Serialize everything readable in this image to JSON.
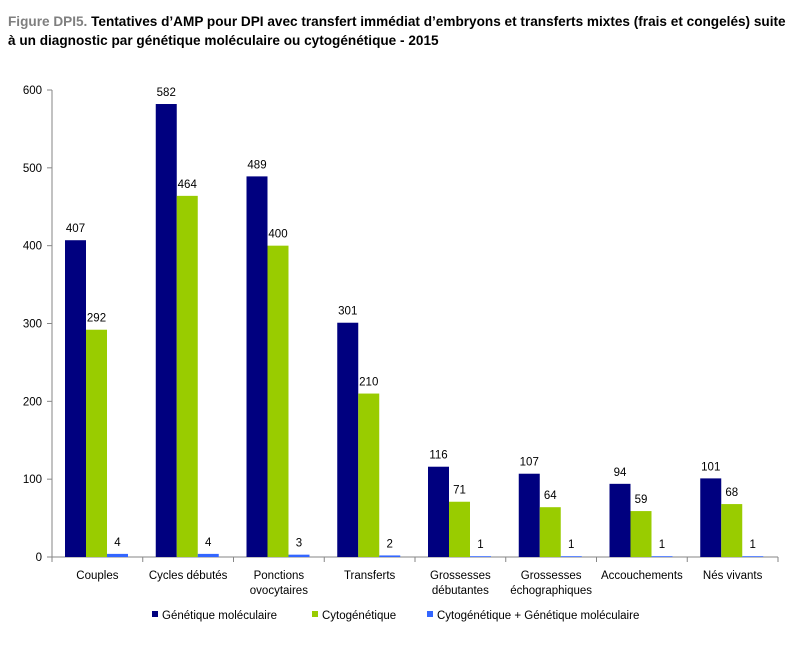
{
  "title": {
    "prefix": "Figure DPI5.",
    "text": "Tentatives d’AMP pour DPI avec transfert immédiat d’embryons et transferts mixtes (frais et congelés) suite à un diagnostic par génétique moléculaire ou cytogénétique - 2015"
  },
  "chart_data": {
    "type": "bar",
    "categories": [
      [
        "Couples"
      ],
      [
        "Cycles débutés"
      ],
      [
        "Ponctions",
        "ovocytaires"
      ],
      [
        "Transferts"
      ],
      [
        "Grossesses",
        "débutantes"
      ],
      [
        "Grossesses",
        "échographiques"
      ],
      [
        "Accouchements"
      ],
      [
        "Nés vivants"
      ]
    ],
    "series": [
      {
        "name": "Génétique moléculaire",
        "color": "#00007f",
        "values": [
          407,
          582,
          489,
          301,
          116,
          107,
          94,
          101
        ]
      },
      {
        "name": "Cytogénétique",
        "color": "#99cc00",
        "values": [
          292,
          464,
          400,
          210,
          71,
          64,
          59,
          68
        ]
      },
      {
        "name": "Cytogénétique + Génétique moléculaire",
        "color": "#3366ff",
        "values": [
          4,
          4,
          3,
          2,
          1,
          1,
          1,
          1
        ]
      }
    ],
    "ylim": [
      0,
      600
    ],
    "yticks": [
      0,
      100,
      200,
      300,
      400,
      500,
      600
    ],
    "data_labels": true,
    "grid": false,
    "legend_position": "bottom"
  }
}
